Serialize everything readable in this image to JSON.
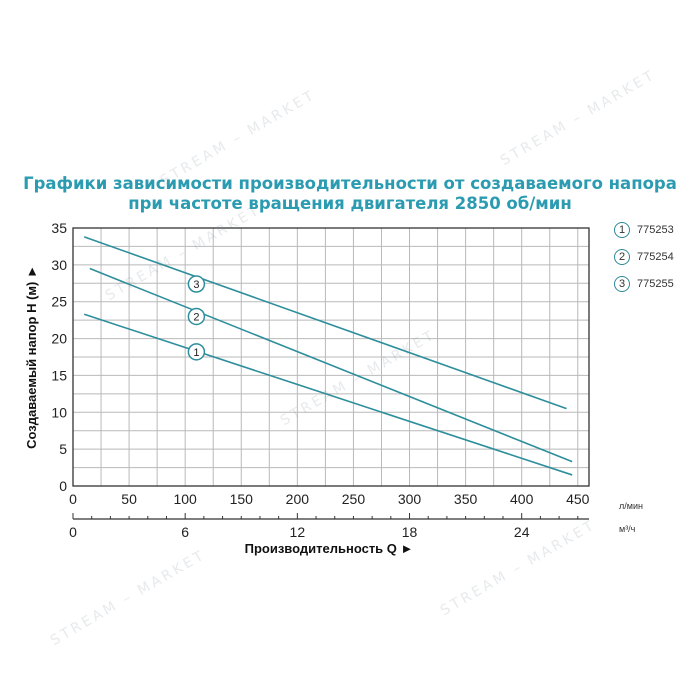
{
  "watermark": "STREAM – MARKET",
  "chart_data": {
    "type": "line",
    "title_lines": [
      "Графики зависимости производительности от создаваемого напора",
      "при частоте вращения двигателя 2850 об/мин"
    ],
    "ylabel": "Создаваемый напор H (м) ►",
    "xlabel": "Производительность Q ►",
    "x_unit_primary": "л/мин",
    "x_unit_secondary": "м³/ч",
    "xlim": [
      0,
      460
    ],
    "ylim": [
      0,
      35
    ],
    "y_ticks": [
      0,
      5,
      10,
      15,
      20,
      25,
      30,
      35
    ],
    "x_ticks": [
      0,
      50,
      100,
      150,
      200,
      250,
      300,
      350,
      400,
      450
    ],
    "x2_ticks": [
      0,
      6,
      12,
      18,
      24
    ],
    "grid": true,
    "legend_position": "right",
    "series": [
      {
        "name": "775253",
        "label": "1",
        "x": [
          10,
          445
        ],
        "y": [
          23.3,
          1.5
        ],
        "marker_x": 110,
        "marker_y": 18.2
      },
      {
        "name": "775254",
        "label": "2",
        "x": [
          15,
          445
        ],
        "y": [
          29.5,
          3.3
        ],
        "marker_x": 110,
        "marker_y": 23.0
      },
      {
        "name": "775255",
        "label": "3",
        "x": [
          10,
          440
        ],
        "y": [
          33.8,
          10.5
        ],
        "marker_x": 110,
        "marker_y": 27.4
      }
    ]
  }
}
